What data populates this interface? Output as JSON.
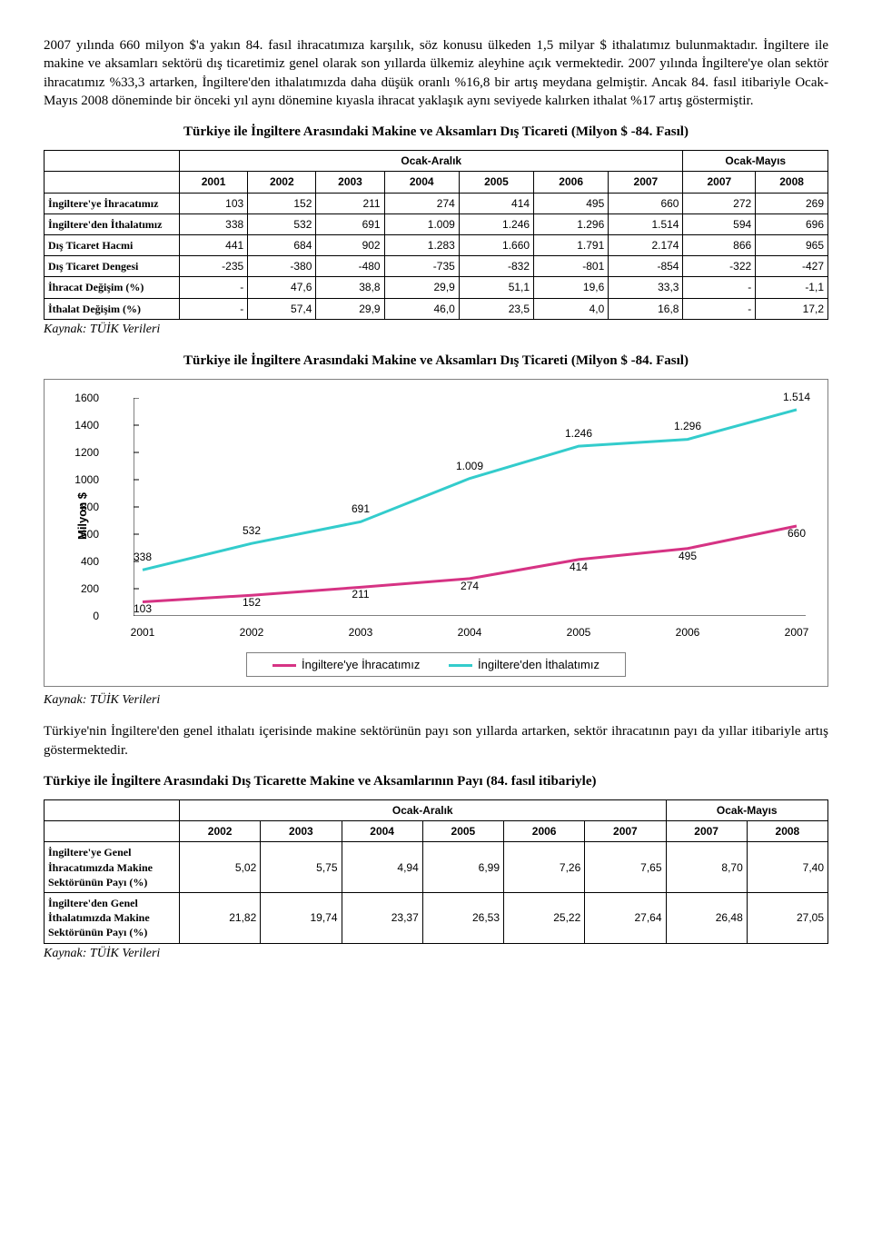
{
  "paragraph1": "2007 yılında 660 milyon $'a yakın 84. fasıl ihracatımıza karşılık, söz konusu ülkeden 1,5 milyar $ ithalatımız bulunmaktadır. İngiltere ile makine ve aksamları sektörü dış ticaretimiz genel olarak son yıllarda ülkemiz aleyhine açık vermektedir. 2007 yılında İngiltere'ye olan sektör ihracatımız %33,3 artarken, İngiltere'den ithalatımızda daha düşük oranlı %16,8 bir artış meydana gelmiştir. Ancak 84. fasıl itibariyle Ocak-Mayıs 2008 döneminde bir önceki yıl aynı dönemine kıyasla ihracat yaklaşık aynı seviyede kalırken ithalat %17 artış göstermiştir.",
  "table1_title": "Türkiye ile İngiltere Arasındaki Makine ve Aksamları Dış Ticareti (Milyon $ -84. Fasıl)",
  "table1": {
    "group_headers": [
      "Ocak-Aralık",
      "Ocak-Mayıs"
    ],
    "years": [
      "2001",
      "2002",
      "2003",
      "2004",
      "2005",
      "2006",
      "2007",
      "2007",
      "2008"
    ],
    "rows": [
      {
        "label": "İngiltere'ye İhracatımız",
        "cells": [
          "103",
          "152",
          "211",
          "274",
          "414",
          "495",
          "660",
          "272",
          "269"
        ]
      },
      {
        "label": "İngiltere'den İthalatımız",
        "cells": [
          "338",
          "532",
          "691",
          "1.009",
          "1.246",
          "1.296",
          "1.514",
          "594",
          "696"
        ]
      },
      {
        "label": "Dış Ticaret Hacmi",
        "cells": [
          "441",
          "684",
          "902",
          "1.283",
          "1.660",
          "1.791",
          "2.174",
          "866",
          "965"
        ]
      },
      {
        "label": "Dış Ticaret Dengesi",
        "cells": [
          "-235",
          "-380",
          "-480",
          "-735",
          "-832",
          "-801",
          "-854",
          "-322",
          "-427"
        ]
      },
      {
        "label": "İhracat Değişim (%)",
        "cells": [
          "-",
          "47,6",
          "38,8",
          "29,9",
          "51,1",
          "19,6",
          "33,3",
          "-",
          "-1,1"
        ]
      },
      {
        "label": "İthalat Değişim (%)",
        "cells": [
          "-",
          "57,4",
          "29,9",
          "46,0",
          "23,5",
          "4,0",
          "16,8",
          "-",
          "17,2"
        ]
      }
    ]
  },
  "source_label": "Kaynak: TÜİK Verileri",
  "chart_title": "Türkiye ile İngiltere Arasındaki Makine ve Aksamları Dış Ticareti (Milyon $ -84. Fasıl)",
  "chart": {
    "type": "line",
    "y_axis_title": "Milyon $",
    "ylim": [
      0,
      1600
    ],
    "ytick_step": 200,
    "categories": [
      "2001",
      "2002",
      "2003",
      "2004",
      "2005",
      "2006",
      "2007"
    ],
    "series": [
      {
        "name": "İngiltere'ye İhracatımız",
        "color": "#d63384",
        "values": [
          103,
          152,
          211,
          274,
          414,
          495,
          660
        ],
        "labels": [
          "103",
          "152",
          "211",
          "274",
          "414",
          "495",
          "660"
        ],
        "line_width": 3
      },
      {
        "name": "İngiltere'den İthalatımız",
        "color": "#33cccc",
        "values": [
          338,
          532,
          691,
          1009,
          1246,
          1296,
          1514
        ],
        "labels": [
          "338",
          "532",
          "691",
          "1.009",
          "1.246",
          "1.296",
          "1.514"
        ],
        "line_width": 3
      }
    ],
    "legend": [
      "İngiltere'ye İhracatımız",
      "İngiltere'den İthalatımız"
    ],
    "background_color": "#ffffff"
  },
  "paragraph2": "Türkiye'nin İngiltere'den genel ithalatı içerisinde makine sektörünün payı son yıllarda artarken, sektör ihracatının payı da yıllar itibariyle artış göstermektedir.",
  "table2_title": "Türkiye ile İngiltere Arasındaki Dış Ticarette Makine ve Aksamlarının Payı (84. fasıl itibariyle)",
  "table2": {
    "group_headers": [
      "Ocak-Aralık",
      "Ocak-Mayıs"
    ],
    "years": [
      "2002",
      "2003",
      "2004",
      "2005",
      "2006",
      "2007",
      "2007",
      "2008"
    ],
    "rows": [
      {
        "label": "İngiltere'ye Genel İhracatımızda Makine Sektörünün Payı (%)",
        "cells": [
          "5,02",
          "5,75",
          "4,94",
          "6,99",
          "7,26",
          "7,65",
          "8,70",
          "7,40"
        ]
      },
      {
        "label": "İngiltere'den Genel İthalatımızda Makine Sektörünün Payı (%)",
        "cells": [
          "21,82",
          "19,74",
          "23,37",
          "26,53",
          "25,22",
          "27,64",
          "26,48",
          "27,05"
        ]
      }
    ]
  }
}
